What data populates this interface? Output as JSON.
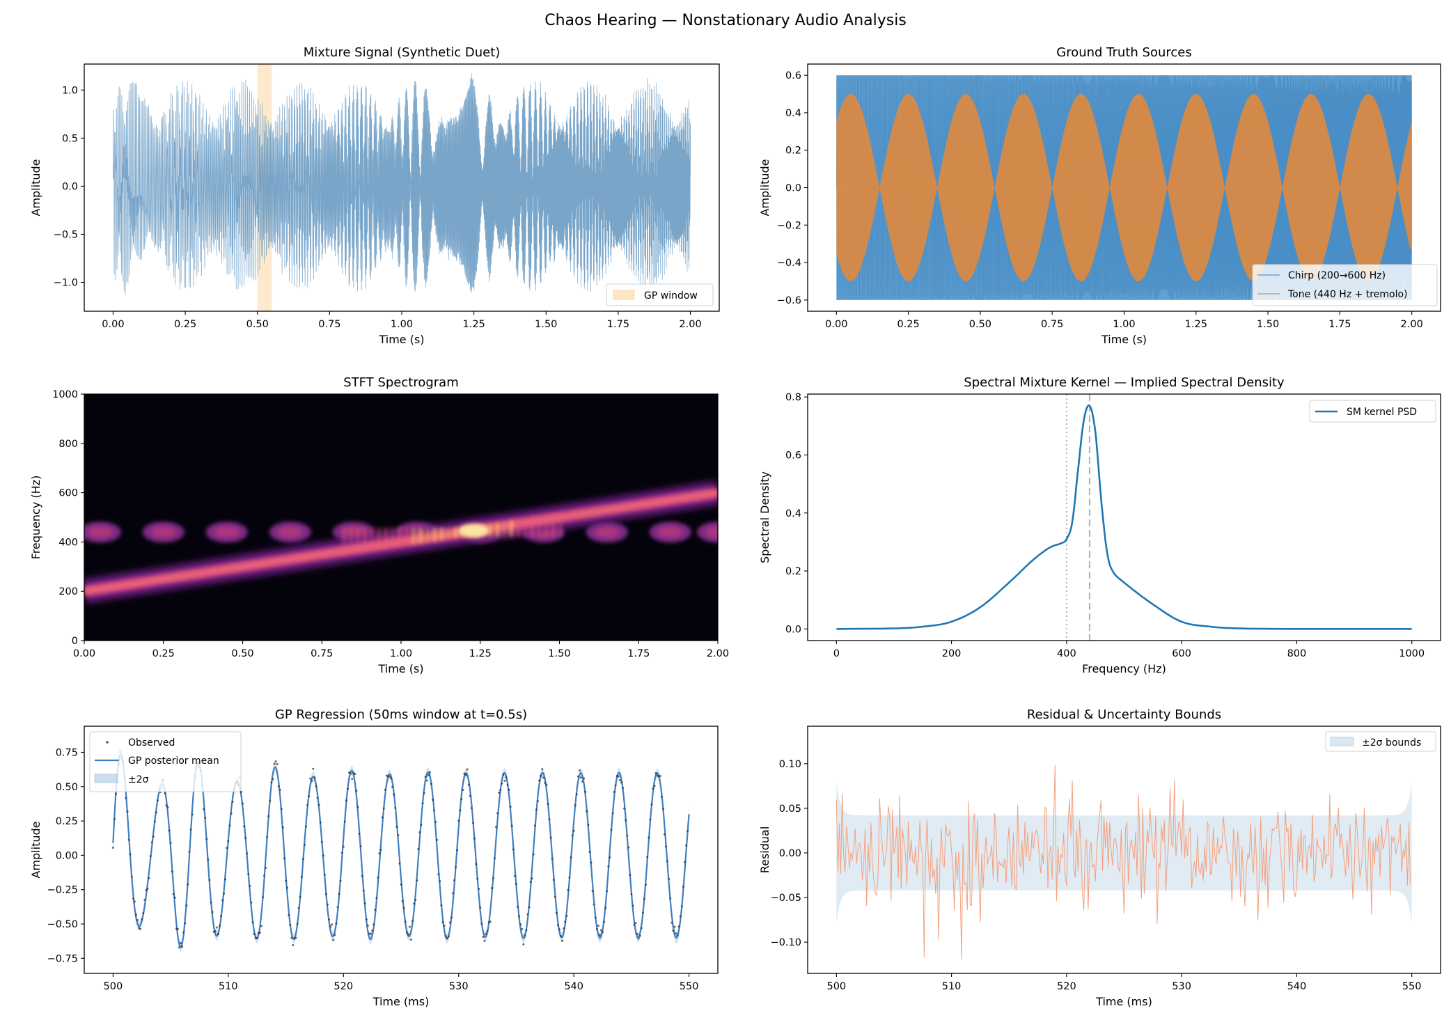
{
  "suptitle": "Chaos Hearing — Nonstationary Audio Analysis",
  "chart_data": [
    {
      "id": "mixture",
      "type": "line",
      "title": "Mixture Signal (Synthetic Duet)",
      "xlabel": "Time (s)",
      "ylabel": "Amplitude",
      "xlim": [
        -0.1,
        2.1
      ],
      "ylim": [
        -1.3,
        1.27
      ],
      "xticks": [
        0,
        0.25,
        0.5,
        0.75,
        1.0,
        1.25,
        1.5,
        1.75,
        2.0
      ],
      "xdec": 2,
      "yticks": [
        -1.0,
        -0.5,
        0.0,
        0.5,
        1.0
      ],
      "ydec": 1,
      "series": [
        {
          "color": "#6a9bc3",
          "duration_s": 2.0,
          "components": [
            "chirp 200→600 Hz",
            "tone 440 Hz + tremolo"
          ]
        }
      ],
      "span": {
        "label": "GP window",
        "x": [
          0.5,
          0.55
        ],
        "color": "#fde6c4"
      },
      "legend": {
        "placement": "lower-right",
        "entries": [
          "GP window"
        ]
      }
    },
    {
      "id": "sources",
      "type": "line",
      "title": "Ground Truth Sources",
      "xlabel": "Time (s)",
      "ylabel": "Amplitude",
      "xlim": [
        -0.1,
        2.1
      ],
      "ylim": [
        -0.66,
        0.66
      ],
      "xticks": [
        0,
        0.25,
        0.5,
        0.75,
        1.0,
        1.25,
        1.5,
        1.75,
        2.0
      ],
      "xdec": 2,
      "yticks": [
        -0.6,
        -0.4,
        -0.2,
        0.0,
        0.2,
        0.4,
        0.6
      ],
      "ydec": 1,
      "series": [
        {
          "name": "Chirp (200→600 Hz)",
          "color": "#5b9bcc",
          "amplitude": 0.6,
          "f_start_hz": 200,
          "f_end_hz": 600
        },
        {
          "name": "Tone (440 Hz + tremolo)",
          "color": "#d98a45",
          "amplitude": 0.5,
          "frequency_hz": 440,
          "envelope_peaks_s": [
            0.05,
            0.25,
            0.45,
            0.65,
            0.85,
            1.05,
            1.25,
            1.45,
            1.65,
            1.85
          ]
        }
      ],
      "legend": {
        "placement": "lower-right"
      }
    },
    {
      "id": "spectrogram",
      "type": "heatmap",
      "title": "STFT Spectrogram",
      "xlabel": "Time (s)",
      "ylabel": "Frequency (Hz)",
      "xlim": [
        0,
        2.0
      ],
      "ylim": [
        0,
        1000
      ],
      "xticks": [
        0,
        0.25,
        0.5,
        0.75,
        1.0,
        1.25,
        1.5,
        1.75,
        2.0
      ],
      "xdec": 2,
      "yticks": [
        0,
        200,
        400,
        600,
        800,
        1000
      ],
      "ydec": 0,
      "colormap": "magma",
      "chirp_track": {
        "t": [
          0,
          2.0
        ],
        "f": [
          200,
          600
        ]
      },
      "tone_track": {
        "f": 440,
        "blob_centers_s": [
          0.05,
          0.25,
          0.45,
          0.65,
          0.85,
          1.05,
          1.25,
          1.45,
          1.65,
          1.85,
          2.0
        ]
      }
    },
    {
      "id": "psd",
      "type": "line",
      "title": "Spectral Mixture Kernel — Implied Spectral Density",
      "xlabel": "Frequency (Hz)",
      "ylabel": "Spectral Density",
      "xlim": [
        -50,
        1050
      ],
      "ylim": [
        -0.04,
        0.81
      ],
      "xticks": [
        0,
        200,
        400,
        600,
        800,
        1000
      ],
      "xdec": 0,
      "yticks": [
        0.0,
        0.2,
        0.4,
        0.6,
        0.8
      ],
      "ydec": 1,
      "series": [
        {
          "name": "SM kernel PSD",
          "color": "#1f77b4",
          "x": [
            0,
            100,
            150,
            200,
            250,
            300,
            340,
            370,
            390,
            400,
            410,
            420,
            430,
            440,
            450,
            460,
            470,
            480,
            500,
            550,
            600,
            650,
            700,
            800,
            1000
          ],
          "y": [
            0,
            0.002,
            0.008,
            0.025,
            0.075,
            0.16,
            0.235,
            0.28,
            0.295,
            0.31,
            0.37,
            0.55,
            0.72,
            0.77,
            0.68,
            0.45,
            0.27,
            0.2,
            0.16,
            0.085,
            0.025,
            0.008,
            0.002,
            0,
            0
          ]
        }
      ],
      "vlines": [
        {
          "x": 400,
          "style": "dotted",
          "color": "#b0b0b0"
        },
        {
          "x": 440,
          "style": "dashed",
          "color": "#b0b0b0"
        }
      ],
      "legend": {
        "placement": "upper-right"
      }
    },
    {
      "id": "gp",
      "type": "line",
      "title": "GP Regression (50ms window at t=0.5s)",
      "xlabel": "Time (ms)",
      "ylabel": "Amplitude",
      "xlim": [
        497.5,
        552.5
      ],
      "ylim": [
        -0.86,
        0.94
      ],
      "xticks": [
        500,
        510,
        520,
        530,
        540,
        550
      ],
      "xdec": 0,
      "yticks": [
        -0.75,
        -0.5,
        -0.25,
        0.0,
        0.25,
        0.5,
        0.75
      ],
      "ydec": 2,
      "series": [
        {
          "name": "Observed",
          "kind": "scatter",
          "color": "#333333"
        },
        {
          "name": "GP posterior mean",
          "kind": "line",
          "color": "#3f7fbf"
        },
        {
          "name": "±2σ",
          "kind": "band",
          "color": "#b8d0e6"
        }
      ],
      "legend": {
        "placement": "upper-left"
      }
    },
    {
      "id": "residual",
      "type": "line",
      "title": "Residual & Uncertainty Bounds",
      "xlabel": "Time (ms)",
      "ylabel": "Residual",
      "xlim": [
        497.5,
        552.5
      ],
      "ylim": [
        -0.135,
        0.142
      ],
      "xticks": [
        500,
        510,
        520,
        530,
        540,
        550
      ],
      "xdec": 0,
      "yticks": [
        -0.1,
        -0.05,
        0.0,
        0.05,
        0.1
      ],
      "ydec": 2,
      "series": [
        {
          "kind": "line",
          "color": "#f4a07e"
        },
        {
          "name": "±2σ bounds",
          "kind": "band",
          "color": "#dbe7f1",
          "half_width": 0.042
        }
      ],
      "legend": {
        "placement": "upper-right"
      }
    }
  ]
}
